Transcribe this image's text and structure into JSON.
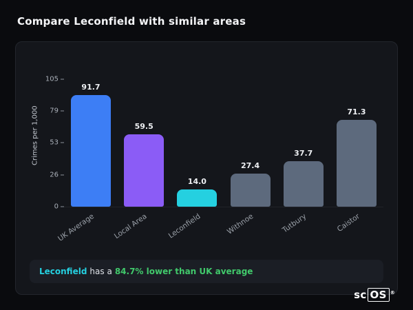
{
  "page_title": "Compare Leconfield with similar areas",
  "chart_data": {
    "type": "bar",
    "title": "",
    "xlabel": "",
    "ylabel": "Crimes per 1,000",
    "ylim": [
      0,
      105
    ],
    "yticks": [
      105,
      79,
      53,
      26,
      0
    ],
    "grid": false,
    "legend": "none",
    "categories": [
      "UK Average",
      "Local Area",
      "Leconfield",
      "Withnoe",
      "Tutbury",
      "Caistor"
    ],
    "values": [
      91.7,
      59.5,
      14.0,
      27.4,
      37.7,
      71.3
    ],
    "value_labels": [
      "91.7",
      "59.5",
      "14.0",
      "27.4",
      "37.7",
      "71.3"
    ],
    "bar_colors": [
      "#3d7ef5",
      "#8b5cf6",
      "#25d0e0",
      "#5d6a7d",
      "#5d6a7d",
      "#5d6a7d"
    ]
  },
  "footer": {
    "highlight": "Leconfield",
    "middle": "has a",
    "stat": "84.7% lower than UK average"
  },
  "logo": {
    "prefix": "sc",
    "boxed": "OS",
    "registered": "®"
  },
  "colors": {
    "page_background": "#0a0b0e",
    "card_background": "#14161b",
    "note_background": "#1b1e25",
    "accent_cyan": "#25d0e0",
    "accent_green": "#41c96b",
    "accent_blue": "#3d7ef5",
    "accent_purple": "#8b5cf6",
    "neutral_bar": "#5d6a7d"
  }
}
